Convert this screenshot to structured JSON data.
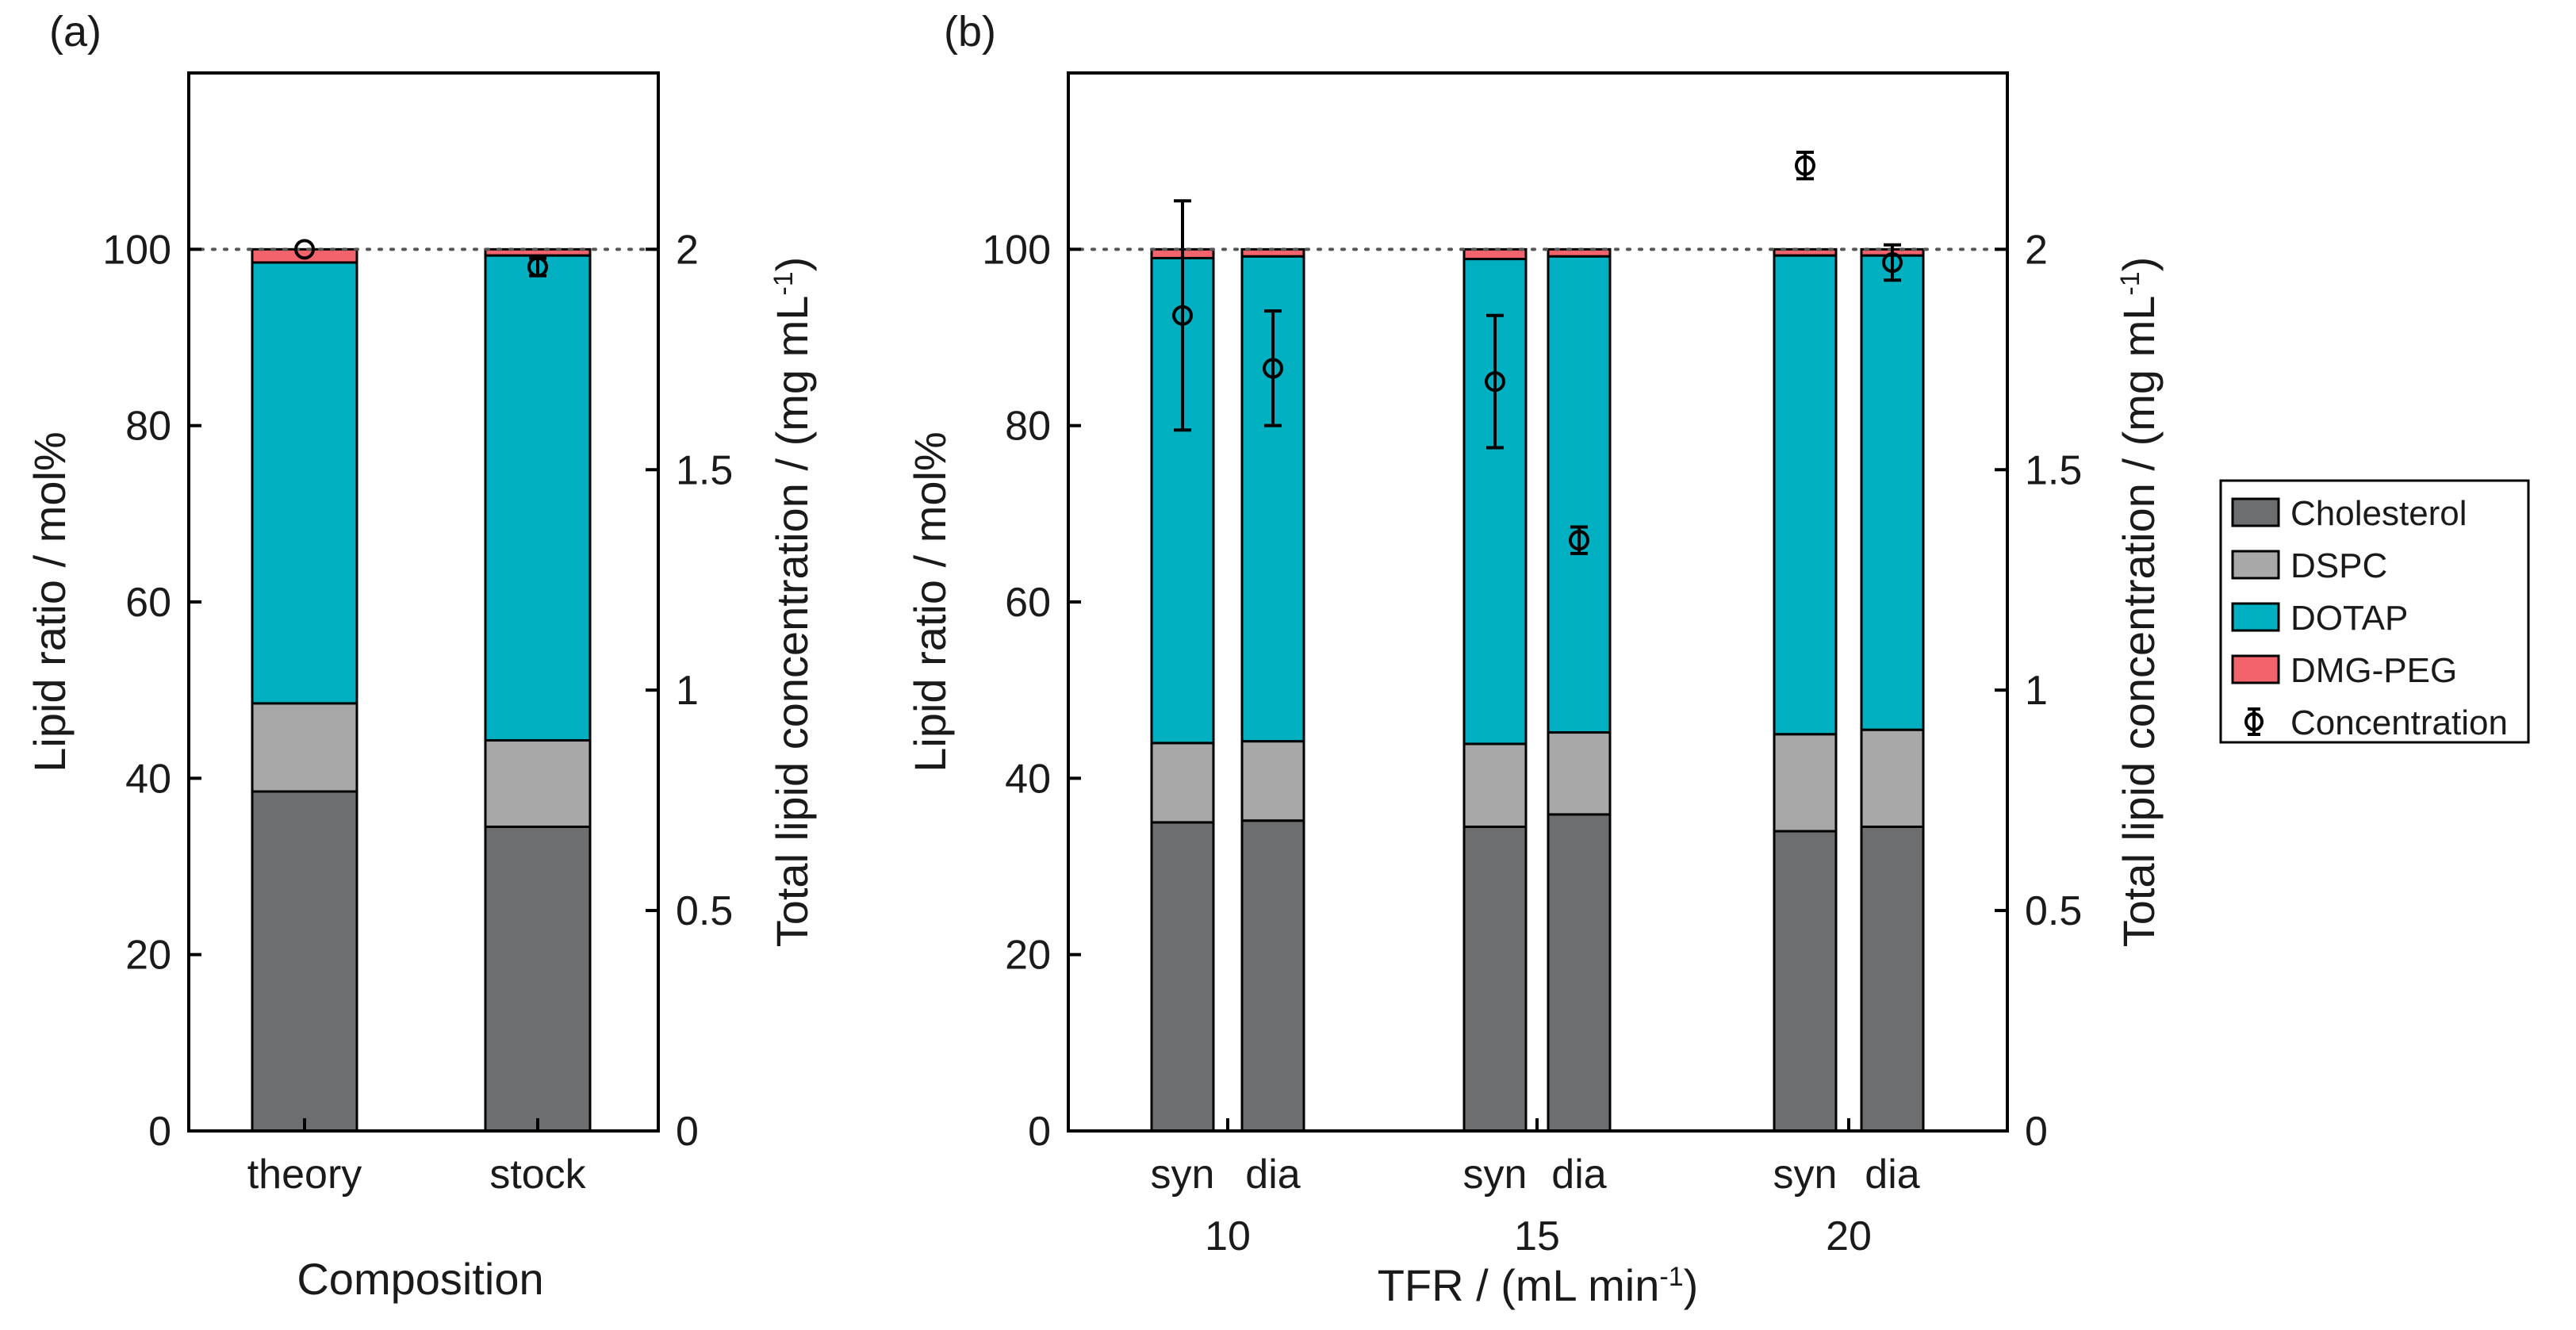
{
  "chart_data": [
    {
      "panel": "(a)",
      "type": "bar",
      "stacked": true,
      "xlabel": "Composition",
      "ylabel": "Lipid ratio / mol%",
      "y2label_main": "Total lipid concentration / (mg mL",
      "y2label_sup": "-1",
      "y2label_end": ")",
      "ylim": [
        0,
        120
      ],
      "y2lim": [
        0,
        2.4
      ],
      "yticks": [
        "0",
        "20",
        "40",
        "60",
        "80",
        "100"
      ],
      "y2ticks": [
        "0",
        "0.5",
        "1",
        "1.5",
        "2"
      ],
      "reference_line_y": 100,
      "categories": [
        "theory",
        "stock"
      ],
      "series": [
        {
          "name": "Cholesterol",
          "values": [
            38.5,
            34.5
          ]
        },
        {
          "name": "DSPC",
          "values": [
            10.0,
            9.8
          ]
        },
        {
          "name": "DOTAP",
          "values": [
            50.0,
            55.0
          ]
        },
        {
          "name": "DMG-PEG",
          "values": [
            1.5,
            0.7
          ]
        }
      ],
      "concentration": {
        "values": [
          2.0,
          1.96
        ],
        "errors": [
          0,
          0.02
        ]
      }
    },
    {
      "panel": "(b)",
      "type": "bar",
      "stacked": true,
      "xlabel_main": "TFR / (mL min",
      "xlabel_sup": "-1",
      "xlabel_end": ")",
      "ylabel": "Lipid ratio / mol%",
      "y2label_main": "Total lipid concentration / (mg mL",
      "y2label_sup": "-1",
      "y2label_end": ")",
      "ylim": [
        0,
        120
      ],
      "y2lim": [
        0,
        2.4
      ],
      "yticks": [
        "0",
        "20",
        "40",
        "60",
        "80",
        "100"
      ],
      "y2ticks": [
        "0",
        "0.5",
        "1",
        "1.5",
        "2"
      ],
      "reference_line_y": 100,
      "groups": [
        "10",
        "15",
        "20"
      ],
      "categories": [
        "syn",
        "dia",
        "syn",
        "dia",
        "syn",
        "dia"
      ],
      "series": [
        {
          "name": "Cholesterol",
          "values": [
            35.0,
            35.2,
            34.5,
            35.9,
            34.0,
            34.5
          ]
        },
        {
          "name": "DSPC",
          "values": [
            9.0,
            9.0,
            9.4,
            9.3,
            11.0,
            11.0
          ]
        },
        {
          "name": "DOTAP",
          "values": [
            55.0,
            55.0,
            55.0,
            54.0,
            54.3,
            53.8
          ]
        },
        {
          "name": "DMG-PEG",
          "values": [
            1.0,
            0.8,
            1.1,
            0.8,
            0.7,
            0.7
          ]
        }
      ],
      "concentration": {
        "values": [
          1.85,
          1.73,
          1.7,
          1.34,
          2.19,
          1.97
        ],
        "errors": [
          0.26,
          0.13,
          0.15,
          0.03,
          0.03,
          0.04
        ]
      }
    }
  ],
  "legend": {
    "items": [
      {
        "label": "Cholesterol",
        "color": "#6d6e70"
      },
      {
        "label": "DSPC",
        "color": "#a8a8a8"
      },
      {
        "label": "DOTAP",
        "color": "#00afc0"
      },
      {
        "label": "DMG-PEG",
        "color": "#f2636c"
      },
      {
        "label": "Concentration",
        "color": "#000000"
      }
    ]
  }
}
